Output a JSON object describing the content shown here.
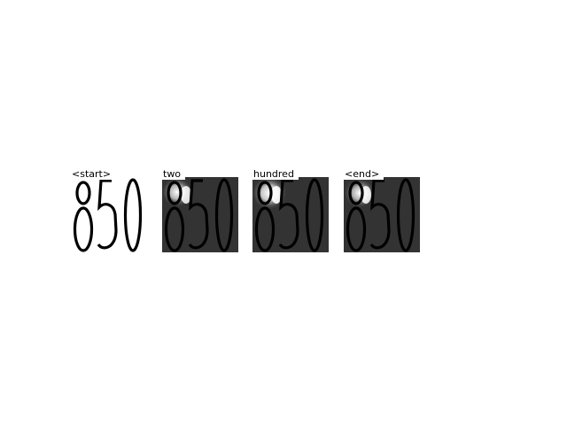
{
  "digits_text": "850",
  "panels": [
    {
      "label": "<start>",
      "view": "source",
      "attention": null
    },
    {
      "label": "two",
      "view": "attention",
      "attention": "first-digit"
    },
    {
      "label": "hundred",
      "view": "attention",
      "attention": "first-digit"
    },
    {
      "label": "<end>",
      "view": "attention",
      "attention": "first-digit"
    }
  ],
  "colors": {
    "background": "#ffffff",
    "source_bg": "#ffffff",
    "attention_bg": "#333333",
    "digit_ink": "#000000",
    "highlight": "#ffffff"
  }
}
